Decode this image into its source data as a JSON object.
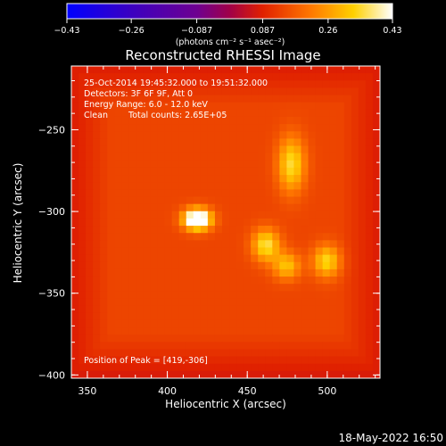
{
  "chart_data": {
    "type": "heatmap",
    "title": "Reconstructed RHESSI Image",
    "xlabel": "Heliocentric X (arcsec)",
    "ylabel": "Heliocentric Y (arcsec)",
    "xlim": [
      340,
      533
    ],
    "ylim": [
      -402,
      -211
    ],
    "x_ticks": [
      350,
      400,
      450,
      500
    ],
    "y_ticks": [
      -250,
      -300,
      -350,
      -400
    ],
    "x_tick_labels": [
      "350",
      "400",
      "450",
      "500"
    ],
    "y_tick_labels": [
      "−250",
      "−300",
      "−350",
      "−400"
    ],
    "colorbar": {
      "min": -0.43,
      "max": 0.43,
      "tick_values": [
        -0.43,
        -0.26,
        -0.087,
        0.087,
        0.26,
        0.43
      ],
      "tick_labels": [
        "−0.43",
        "−0.26",
        "−0.087",
        "0.087",
        "0.26",
        "0.43"
      ],
      "units_label": "(photons cm⁻² s⁻¹ asec⁻²)",
      "colormap": "blue-purple-red-orange-yellow-white"
    },
    "background_level": 0.14,
    "sources": [
      {
        "x": 419,
        "y": -306,
        "peak": 0.43,
        "sigma_x": 6,
        "sigma_y": 4.5
      },
      {
        "x": 462,
        "y": -322,
        "peak": 0.22,
        "sigma_x": 6,
        "sigma_y": 7
      },
      {
        "x": 478,
        "y": -272,
        "peak": 0.21,
        "sigma_x": 6,
        "sigma_y": 12
      },
      {
        "x": 500,
        "y": -332,
        "peak": 0.2,
        "sigma_x": 6,
        "sigma_y": 7
      },
      {
        "x": 475,
        "y": -335,
        "peak": 0.17,
        "sigma_x": 6,
        "sigma_y": 6
      }
    ],
    "annotations": {
      "time_range": "25-Oct-2014 19:45:32.000 to 19:51:32.000",
      "detectors": "Detectors: 3F 6F 9F, Att 0",
      "energy_range": "Energy Range: 6.0 - 12.0 keV",
      "method_label": "Clean",
      "total_counts": "Total counts: 2.65E+05",
      "peak_position": "Position of Peak = [419,-306]"
    }
  },
  "footer": {
    "date_stamp": "18-May-2022 16:50"
  }
}
